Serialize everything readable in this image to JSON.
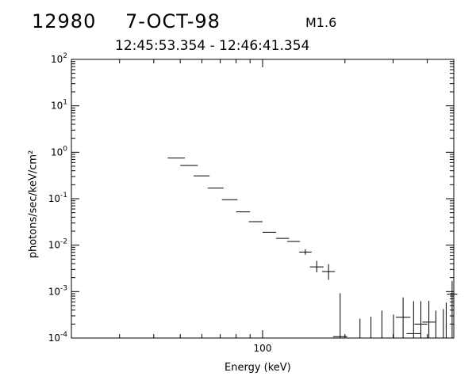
{
  "header": {
    "flare_id": "12980",
    "date": "7-OCT-98",
    "goes_class": "M1.6",
    "time_range": "12:45:53.354 - 12:46:41.354"
  },
  "chart_data": {
    "type": "scatter",
    "title": "",
    "xlabel": "Energy (keV)",
    "ylabel": "photons/sec/keV/cm²",
    "xscale": "log",
    "yscale": "log",
    "xlim": [
      20,
      500
    ],
    "ylim": [
      0.0001,
      100
    ],
    "x_ticks": [
      {
        "value": 100,
        "label": "100"
      }
    ],
    "y_ticks": [
      {
        "value": 0.0001,
        "base": "10",
        "exp": "-4"
      },
      {
        "value": 0.001,
        "base": "10",
        "exp": "-3"
      },
      {
        "value": 0.01,
        "base": "10",
        "exp": "-2"
      },
      {
        "value": 0.1,
        "base": "10",
        "exp": "-1"
      },
      {
        "value": 1,
        "base": "10",
        "exp": "0"
      },
      {
        "value": 10,
        "base": "10",
        "exp": "1"
      },
      {
        "value": 100,
        "base": "10",
        "exp": "2"
      }
    ],
    "grid": false,
    "legend": "none",
    "series": [
      {
        "style": "error-bar crosses",
        "points": [
          {
            "x0": 45,
            "x1": 52,
            "y": 0.75
          },
          {
            "x0": 50,
            "x1": 58,
            "y": 0.52
          },
          {
            "x0": 56,
            "x1": 64,
            "y": 0.31
          },
          {
            "x0": 63,
            "x1": 72,
            "y": 0.17
          },
          {
            "x0": 71,
            "x1": 81,
            "y": 0.095
          },
          {
            "x0": 80,
            "x1": 90,
            "y": 0.052
          },
          {
            "x0": 89,
            "x1": 100,
            "y": 0.032
          },
          {
            "x0": 100,
            "x1": 112,
            "y": 0.019
          },
          {
            "x0": 112,
            "x1": 125,
            "y": 0.014
          },
          {
            "x0": 123,
            "x1": 137,
            "y": 0.012
          },
          {
            "x0": 136,
            "x1": 151,
            "y": 0.0071,
            "lo": 0.0062,
            "hi": 0.0081
          },
          {
            "x0": 149,
            "x1": 167,
            "y": 0.0034,
            "lo": 0.0026,
            "hi": 0.0046
          },
          {
            "x0": 165,
            "x1": 184,
            "y": 0.0027,
            "lo": 0.0018,
            "hi": 0.0039
          },
          {
            "x0": 181,
            "x1": 204,
            "y": 0.000107,
            "lo": 0.0001,
            "hi": 0.00092
          },
          {
            "x": 227,
            "y": 0.0001,
            "hi": 0.00026
          },
          {
            "x": 249,
            "y": 0.0001,
            "hi": 0.00029
          },
          {
            "x": 273,
            "y": 0.0001,
            "hi": 0.00039
          },
          {
            "x": 301,
            "y": 0.0001,
            "hi": 0.00032
          },
          {
            "x0": 307,
            "x1": 347,
            "y": 0.00028,
            "lo": 0.0001,
            "hi": 0.00075
          },
          {
            "x0": 336,
            "x1": 378,
            "y": 0.000125,
            "lo": 0.0001,
            "hi": 0.00062
          },
          {
            "x0": 359,
            "x1": 400,
            "y": 0.0002,
            "lo": 0.0001,
            "hi": 0.00062
          },
          {
            "x0": 384,
            "x1": 428,
            "y": 0.00022,
            "lo": 0.0001,
            "hi": 0.00063
          },
          {
            "x": 430,
            "y": 0.0001,
            "hi": 0.00039
          },
          {
            "x": 458,
            "y": 0.0001,
            "hi": 0.00042
          },
          {
            "x": 469,
            "y": 0.0001,
            "hi": 0.00058
          },
          {
            "x0": 472,
            "x1": 515,
            "y": 0.00088,
            "lo": 0.0001,
            "hi": 0.0017
          }
        ]
      }
    ]
  }
}
